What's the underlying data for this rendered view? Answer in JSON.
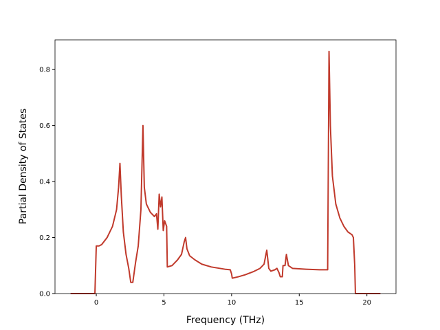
{
  "chart_data": {
    "type": "line",
    "xlabel": "Frequency (THz)",
    "ylabel": "Partial Density of States",
    "color": "#c0392b",
    "grid": false,
    "xlim": [
      -3.05,
      22.15
    ],
    "ylim": [
      0,
      0.906
    ],
    "xticks": [
      0,
      5,
      10,
      15,
      20
    ],
    "yticks": [
      {
        "value": 0,
        "label": "0.0"
      },
      0.2,
      0.4,
      0.6,
      0.8
    ],
    "x": [
      -1.9,
      -0.1,
      0.0,
      0.2,
      0.4,
      0.8,
      1.2,
      1.5,
      1.65,
      1.75,
      1.85,
      2.0,
      2.2,
      2.4,
      2.55,
      2.7,
      2.9,
      3.1,
      3.3,
      3.45,
      3.55,
      3.7,
      4.0,
      4.3,
      4.45,
      4.55,
      4.65,
      4.75,
      4.85,
      4.95,
      5.05,
      5.2,
      5.25,
      5.6,
      6.0,
      6.3,
      6.5,
      6.6,
      6.7,
      6.9,
      7.3,
      7.8,
      8.5,
      9.5,
      9.9,
      10.0,
      10.05,
      10.5,
      11.0,
      11.6,
      12.1,
      12.4,
      12.6,
      12.75,
      12.9,
      13.2,
      13.35,
      13.5,
      13.6,
      13.75,
      13.8,
      13.95,
      14.05,
      14.2,
      14.5,
      15.5,
      16.5,
      17.1,
      17.2,
      17.3,
      17.45,
      17.7,
      18.0,
      18.3,
      18.6,
      18.9,
      19.0,
      19.1,
      19.15,
      21.0
    ],
    "values": [
      0,
      0,
      0.17,
      0.17,
      0.175,
      0.2,
      0.24,
      0.3,
      0.38,
      0.465,
      0.35,
      0.22,
      0.14,
      0.09,
      0.04,
      0.04,
      0.11,
      0.17,
      0.3,
      0.6,
      0.38,
      0.32,
      0.29,
      0.275,
      0.285,
      0.23,
      0.355,
      0.31,
      0.345,
      0.225,
      0.26,
      0.24,
      0.095,
      0.1,
      0.12,
      0.14,
      0.185,
      0.2,
      0.16,
      0.135,
      0.12,
      0.105,
      0.095,
      0.087,
      0.085,
      0.07,
      0.055,
      0.06,
      0.067,
      0.078,
      0.09,
      0.105,
      0.155,
      0.09,
      0.08,
      0.085,
      0.09,
      0.075,
      0.06,
      0.06,
      0.1,
      0.1,
      0.14,
      0.1,
      0.09,
      0.087,
      0.085,
      0.085,
      0.865,
      0.6,
      0.42,
      0.32,
      0.27,
      0.24,
      0.22,
      0.21,
      0.2,
      0.1,
      0,
      0
    ]
  }
}
